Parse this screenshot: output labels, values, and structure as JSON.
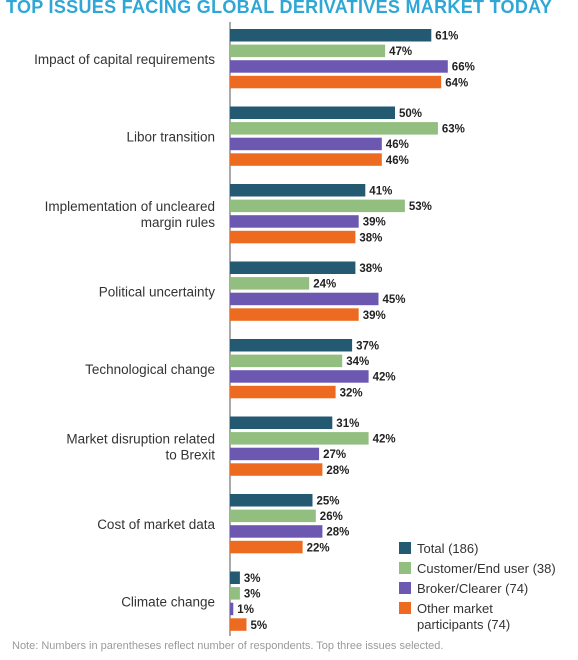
{
  "chart_data": {
    "type": "bar",
    "orientation": "horizontal",
    "title": "TOP ISSUES FACING GLOBAL DERIVATIVES MARKET TODAY",
    "value_suffix": "%",
    "categories": [
      [
        "Impact of capital requirements"
      ],
      [
        "Libor transition"
      ],
      [
        "Implementation of uncleared",
        "margin rules"
      ],
      [
        "Political uncertainty"
      ],
      [
        "Technological change"
      ],
      [
        "Market disruption related",
        "to Brexit"
      ],
      [
        "Cost of market data"
      ],
      [
        "Climate change"
      ]
    ],
    "series": [
      {
        "name": [
          "Total (186)"
        ],
        "color": "#235a72",
        "values": [
          61,
          50,
          41,
          38,
          37,
          31,
          25,
          3
        ]
      },
      {
        "name": [
          "Customer/End user (38)"
        ],
        "color": "#92bf80",
        "values": [
          47,
          63,
          53,
          24,
          34,
          42,
          26,
          3
        ]
      },
      {
        "name": [
          "Broker/Clearer (74)"
        ],
        "color": "#6c58b0",
        "values": [
          66,
          46,
          39,
          45,
          42,
          27,
          28,
          1
        ]
      },
      {
        "name": [
          "Other market",
          "participants (74)"
        ],
        "color": "#ec6b20",
        "values": [
          64,
          46,
          38,
          39,
          32,
          28,
          22,
          5
        ]
      }
    ],
    "legend": "lower-right",
    "grid": false
  },
  "note": "Note: Numbers in parentheses reflect number of respondents. Top three issues selected."
}
